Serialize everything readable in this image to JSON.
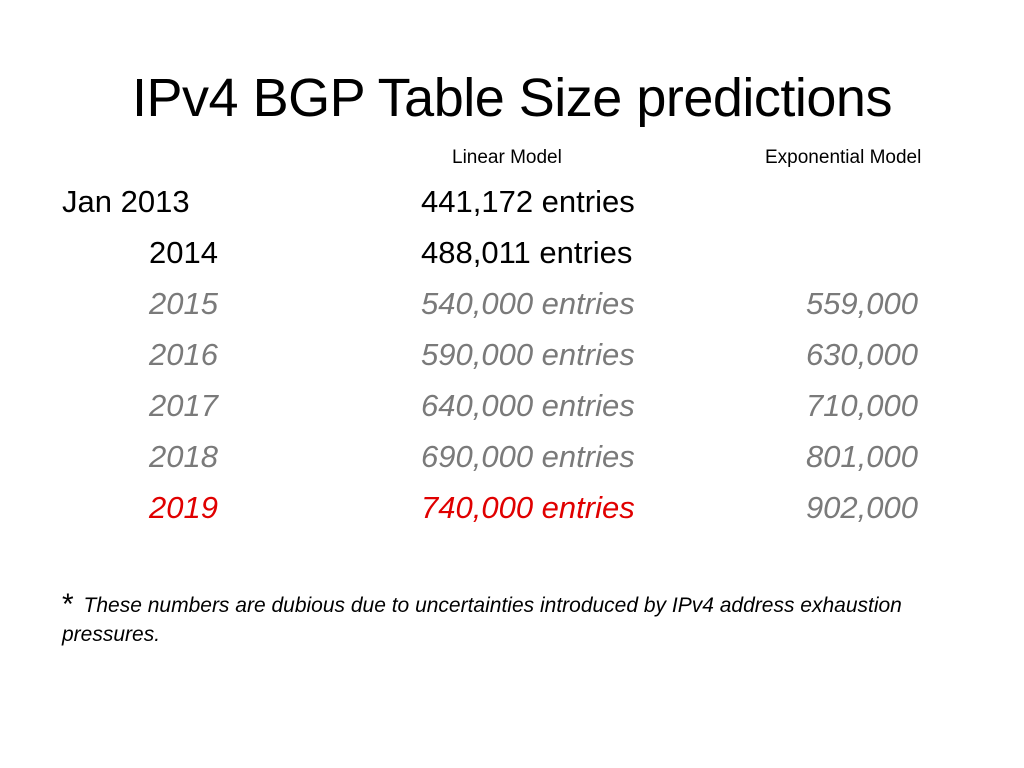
{
  "slide": {
    "title": "IPv4 BGP Table Size predictions"
  },
  "columns": {
    "linear": "Linear Model",
    "exponential": "Exponential Model"
  },
  "rows": [
    {
      "year": "Jan 2013",
      "linear": "441,172 entries",
      "exponential": ""
    },
    {
      "year": "2014",
      "linear": "488,011 entries",
      "exponential": ""
    },
    {
      "year": "2015",
      "linear": "540,000 entries",
      "exponential": "559,000"
    },
    {
      "year": "2016",
      "linear": "590,000 entries",
      "exponential": "630,000"
    },
    {
      "year": "2017",
      "linear": "640,000 entries",
      "exponential": "710,000"
    },
    {
      "year": "2018",
      "linear": "690,000 entries",
      "exponential": "801,000"
    },
    {
      "year": "2019",
      "linear": "740,000 entries",
      "exponential": "902,000"
    }
  ],
  "footnote": {
    "marker": "*",
    "text": "These numbers are dubious due to uncertainties introduced by IPv4 address exhaustion pressures."
  },
  "colors": {
    "actual": "#000000",
    "predicted": "#7a7a7a",
    "highlight": "#e00000"
  }
}
